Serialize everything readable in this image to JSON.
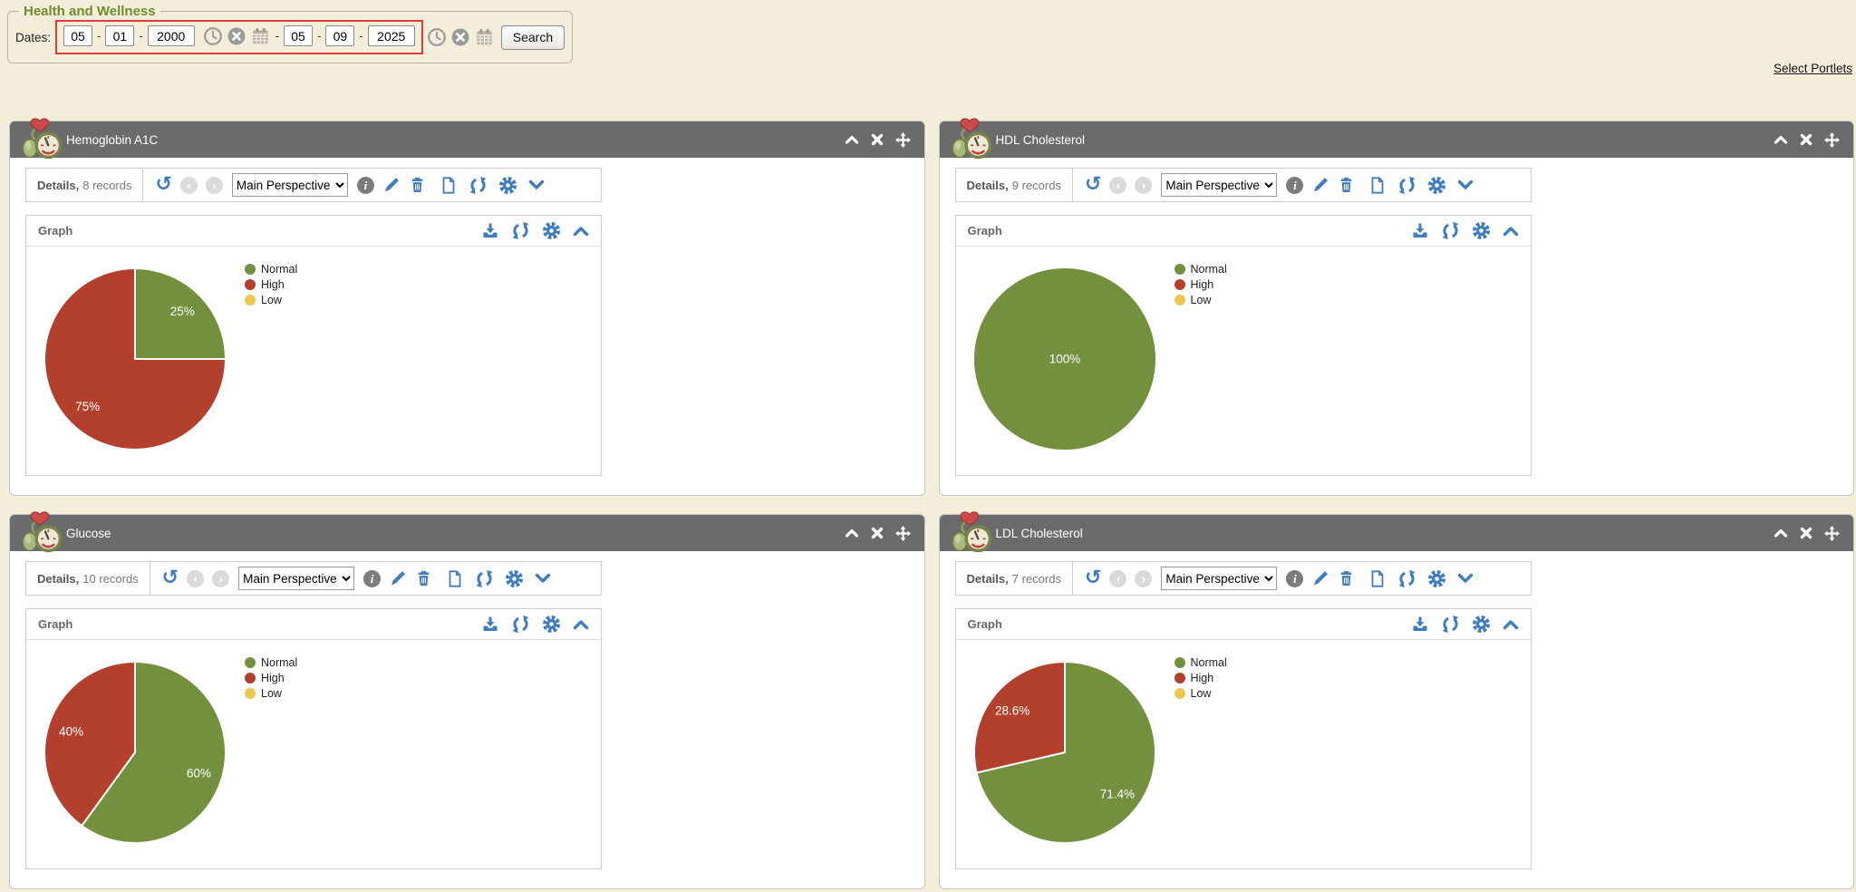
{
  "page": {
    "section_title": "Health and Wellness",
    "select_portlets_label": "Select Portlets"
  },
  "filters": {
    "dates_label": "Dates:",
    "dash": "-",
    "from": {
      "month": "05",
      "day": "01",
      "year": "2000"
    },
    "to": {
      "month": "05",
      "day": "09",
      "year": "2025"
    },
    "search_label": "Search"
  },
  "toolbar": {
    "details_label": "Details,",
    "perspective": "Main Perspective",
    "graph_label": "Graph"
  },
  "portlets": [
    {
      "title": "Hemoglobin A1C",
      "records": "8 records"
    },
    {
      "title": "HDL Cholesterol",
      "records": "9 records"
    },
    {
      "title": "Glucose",
      "records": "10 records"
    },
    {
      "title": "LDL Cholesterol",
      "records": "7 records"
    }
  ],
  "chart_data": [
    {
      "type": "pie",
      "title": "Hemoglobin A1C",
      "categories": [
        "Normal",
        "High",
        "Low"
      ],
      "values": [
        25,
        75,
        0
      ],
      "labels": [
        "25%",
        "75%",
        ""
      ],
      "colors": [
        "#72903e",
        "#b3402d",
        "#e9c84e"
      ],
      "legend_position": "right"
    },
    {
      "type": "pie",
      "title": "HDL Cholesterol",
      "categories": [
        "Normal",
        "High",
        "Low"
      ],
      "values": [
        100,
        0,
        0
      ],
      "labels": [
        "100%",
        "",
        ""
      ],
      "colors": [
        "#72903e",
        "#b3402d",
        "#e9c84e"
      ],
      "legend_position": "right"
    },
    {
      "type": "pie",
      "title": "Glucose",
      "categories": [
        "Normal",
        "High",
        "Low"
      ],
      "values": [
        60,
        40,
        0
      ],
      "labels": [
        "60%",
        "40%",
        ""
      ],
      "colors": [
        "#72903e",
        "#b3402d",
        "#e9c84e"
      ],
      "legend_position": "right"
    },
    {
      "type": "pie",
      "title": "LDL Cholesterol",
      "categories": [
        "Normal",
        "High",
        "Low"
      ],
      "values": [
        71.4,
        28.6,
        0
      ],
      "labels": [
        "71.4%",
        "28.6%",
        ""
      ],
      "colors": [
        "#72903e",
        "#b3402d",
        "#e9c84e"
      ],
      "legend_position": "right"
    }
  ],
  "colors": {
    "page_bg": "#f4edd9",
    "portlet_header": "#6b6b6b",
    "accent_blue": "#3f7dbf",
    "highlight_red": "#e23b3b",
    "pie_normal": "#72903e",
    "pie_high": "#b3402d",
    "pie_low": "#e9c84e",
    "section_title_green": "#6e8e2a"
  },
  "icons": {
    "date_row": [
      "clock-icon",
      "clear-icon",
      "calendar-icon"
    ],
    "portlet_header": [
      "collapse-icon",
      "close-icon",
      "move-icon"
    ],
    "details_toolbar": [
      "undo-icon",
      "previous-icon",
      "next-icon",
      "info-icon",
      "edit-icon",
      "delete-icon",
      "document-icon",
      "refresh-icon",
      "settings-icon",
      "chevron-down-icon"
    ],
    "graph_header": [
      "download-icon",
      "refresh-icon",
      "settings-icon",
      "chevron-up-icon"
    ]
  }
}
